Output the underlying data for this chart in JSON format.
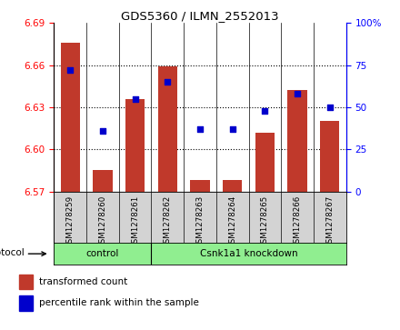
{
  "title": "GDS5360 / ILMN_2552013",
  "samples": [
    "GSM1278259",
    "GSM1278260",
    "GSM1278261",
    "GSM1278262",
    "GSM1278263",
    "GSM1278264",
    "GSM1278265",
    "GSM1278266",
    "GSM1278267"
  ],
  "red_values": [
    6.676,
    6.585,
    6.636,
    6.659,
    6.578,
    6.578,
    6.612,
    6.642,
    6.62
  ],
  "blue_percentiles": [
    72,
    36,
    55,
    65,
    37,
    37,
    48,
    58,
    50
  ],
  "ylim_left": [
    6.57,
    6.69
  ],
  "ylim_right": [
    0,
    100
  ],
  "yticks_left": [
    6.57,
    6.6,
    6.63,
    6.66,
    6.69
  ],
  "yticks_right": [
    0,
    25,
    50,
    75,
    100
  ],
  "ytick_labels_right": [
    "0",
    "25",
    "50",
    "75",
    "100%"
  ],
  "bar_color": "#C0392B",
  "dot_color": "#0000CC",
  "bar_bottom": 6.57,
  "groups": [
    {
      "label": "control",
      "start": 0,
      "end": 3
    },
    {
      "label": "Csnk1a1 knockdown",
      "start": 3,
      "end": 9
    }
  ],
  "protocol_label": "protocol",
  "legend_items": [
    {
      "label": "transformed count",
      "color": "#C0392B"
    },
    {
      "label": "percentile rank within the sample",
      "color": "#0000CC"
    }
  ],
  "xlabel_area_color": "#D3D3D3",
  "group_color": "#90EE90"
}
